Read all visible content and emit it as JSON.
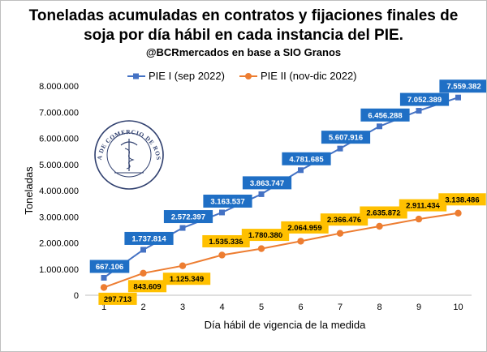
{
  "header": {
    "title_line1": "Toneladas acumuladas en contratos y fijaciones finales de",
    "title_line2": "soja por día hábil en cada instancia del PIE.",
    "subtitle": "@BCRmercados en base a SIO Granos"
  },
  "logo": {
    "text": "BOLSA DE COMERCIO DE ROSARIO"
  },
  "chart_data": {
    "type": "line",
    "title": "Toneladas acumuladas en contratos y fijaciones finales de soja por día hábil en cada instancia del PIE.",
    "xlabel": "Día hábil de vigencia de la medida",
    "ylabel": "Toneladas",
    "x": [
      1,
      2,
      3,
      4,
      5,
      6,
      7,
      8,
      9,
      10
    ],
    "x_tick_labels": [
      "1",
      "2",
      "3",
      "4",
      "5",
      "6",
      "7",
      "8",
      "9",
      "10"
    ],
    "ylim": [
      0,
      8000000
    ],
    "y_tick_labels": [
      "0",
      "1.000.000",
      "2.000.000",
      "3.000.000",
      "4.000.000",
      "5.000.000",
      "6.000.000",
      "7.000.000",
      "8.000.000"
    ],
    "grid": false,
    "legend": "top",
    "series": [
      {
        "name": "PIE I (sep 2022)",
        "color": "#4472c4",
        "marker": "square",
        "values": [
          667106,
          1737814,
          2572397,
          3163537,
          3863747,
          4781685,
          5607916,
          6456288,
          7052389,
          7559382
        ],
        "labels": [
          "667.106",
          "1.737.814",
          "2.572.397",
          "3.163.537",
          "3.863.747",
          "4.781.685",
          "5.607.916",
          "6.456.288",
          "7.052.389",
          "7.559.382"
        ],
        "label_bg": "#1f6fc5",
        "label_color": "#ffffff"
      },
      {
        "name": "PIE II (nov-dic 2022)",
        "color": "#ed7d31",
        "marker": "circle",
        "values": [
          297713,
          843609,
          1125349,
          1535338,
          1780380,
          2064959,
          2366476,
          2635872,
          2911434,
          3138486
        ],
        "labels": [
          "297.713",
          "843.609",
          "1.125.349",
          "1.535.338",
          "1.780.380",
          "2.064.959",
          "2.366.476",
          "2.635.872",
          "2.911.434",
          "3.138.486"
        ],
        "label_bg": "#ffc000",
        "label_color": "#000000"
      }
    ]
  }
}
